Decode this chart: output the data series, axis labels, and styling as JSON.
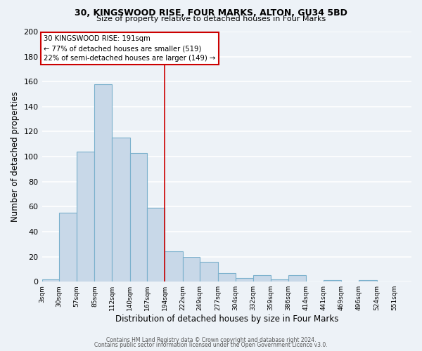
{
  "title1": "30, KINGSWOOD RISE, FOUR MARKS, ALTON, GU34 5BD",
  "title2": "Size of property relative to detached houses in Four Marks",
  "xlabel": "Distribution of detached houses by size in Four Marks",
  "ylabel": "Number of detached properties",
  "bin_edges": [
    3,
    30,
    57,
    85,
    112,
    140,
    167,
    194,
    222,
    249,
    277,
    304,
    332,
    359,
    386,
    414,
    441,
    469,
    496,
    524,
    551
  ],
  "bar_heights": [
    2,
    55,
    104,
    158,
    115,
    103,
    59,
    24,
    20,
    16,
    7,
    3,
    5,
    2,
    5,
    0,
    1,
    0,
    1,
    0
  ],
  "bar_color": "#c8d8e8",
  "bar_edge_color": "#7ab0cc",
  "vline_x": 194,
  "vline_color": "#cc0000",
  "annotation_line1": "30 KINGSWOOD RISE: 191sqm",
  "annotation_line2": "← 77% of detached houses are smaller (519)",
  "annotation_line3": "22% of semi-detached houses are larger (149) →",
  "annotation_box_color": "#cc0000",
  "ylim": [
    0,
    200
  ],
  "yticks": [
    0,
    20,
    40,
    60,
    80,
    100,
    120,
    140,
    160,
    180,
    200
  ],
  "xtick_labels": [
    "3sqm",
    "30sqm",
    "57sqm",
    "85sqm",
    "112sqm",
    "140sqm",
    "167sqm",
    "194sqm",
    "222sqm",
    "249sqm",
    "277sqm",
    "304sqm",
    "332sqm",
    "359sqm",
    "386sqm",
    "414sqm",
    "441sqm",
    "469sqm",
    "496sqm",
    "524sqm",
    "551sqm"
  ],
  "xtick_positions": [
    3,
    30,
    57,
    85,
    112,
    140,
    167,
    194,
    222,
    249,
    277,
    304,
    332,
    359,
    386,
    414,
    441,
    469,
    496,
    524,
    551
  ],
  "footer1": "Contains HM Land Registry data © Crown copyright and database right 2024.",
  "footer2": "Contains public sector information licensed under the Open Government Licence v3.0.",
  "background_color": "#edf2f7",
  "grid_color": "#ffffff",
  "xlim_left": 3,
  "xlim_right": 578
}
